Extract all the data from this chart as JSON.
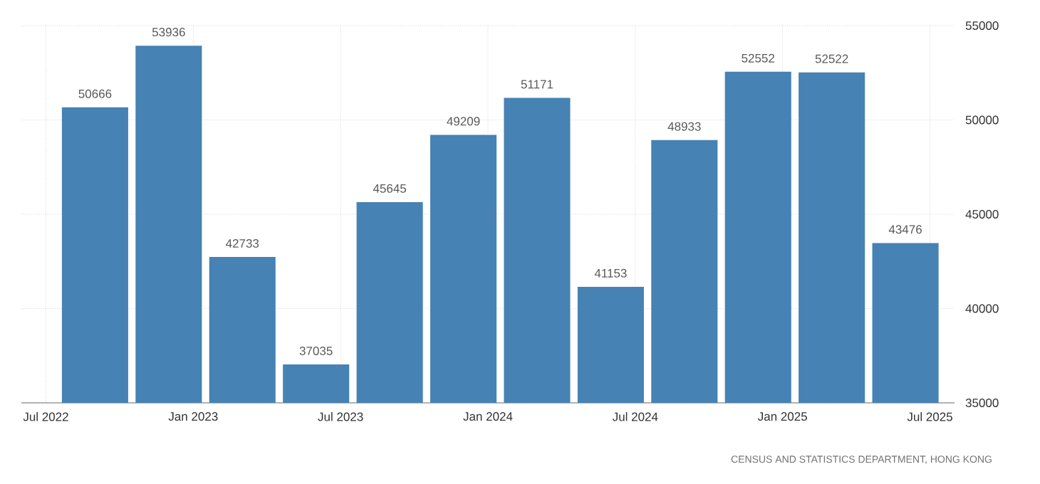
{
  "chart_data": {
    "type": "bar",
    "x": [
      "2022-09",
      "2022-12",
      "2023-03",
      "2023-06",
      "2023-09",
      "2023-12",
      "2024-03",
      "2024-06",
      "2024-09",
      "2024-12",
      "2025-03",
      "2025-06"
    ],
    "values": [
      50666,
      53936,
      42733,
      37035,
      45645,
      49209,
      51171,
      41153,
      48933,
      52552,
      52522,
      43476
    ],
    "color": "#4682b4",
    "xlim": [
      "2022-06",
      "2025-08"
    ],
    "xticks": [
      {
        "value": "2022-07",
        "label": "Jul 2022"
      },
      {
        "value": "2023-01",
        "label": "Jan 2023"
      },
      {
        "value": "2023-07",
        "label": "Jul 2023"
      },
      {
        "value": "2024-01",
        "label": "Jan 2024"
      },
      {
        "value": "2024-07",
        "label": "Jul 2024"
      },
      {
        "value": "2025-01",
        "label": "Jan 2025"
      },
      {
        "value": "2025-07",
        "label": "Jul 2025"
      }
    ],
    "ylim": [
      35000,
      55000
    ],
    "yticks": [
      35000,
      40000,
      45000,
      50000,
      55000
    ],
    "grid": true,
    "data_labels": true,
    "annotations": [
      "CENSUS AND STATISTICS DEPARTMENT, HONG KONG"
    ]
  }
}
